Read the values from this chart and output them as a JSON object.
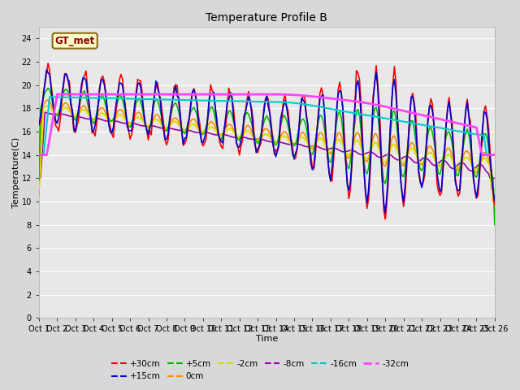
{
  "title": "Temperature Profile B",
  "xlabel": "Time",
  "ylabel": "Temperature(C)",
  "ylim": [
    0,
    25
  ],
  "yticks": [
    0,
    2,
    4,
    6,
    8,
    10,
    12,
    14,
    16,
    18,
    20,
    22,
    24
  ],
  "fig_bg": "#d8d8d8",
  "plot_bg": "#e8e8e8",
  "grid_color": "#ffffff",
  "series_colors": {
    "+30cm": "#ff0000",
    "+15cm": "#0000cc",
    "+5cm": "#00bb00",
    "0cm": "#ff8800",
    "-2cm": "#dddd00",
    "-8cm": "#9900aa",
    "-16cm": "#00cccc",
    "-32cm": "#ff44ff"
  },
  "series_linewidths": {
    "+30cm": 1.2,
    "+15cm": 1.2,
    "+5cm": 1.2,
    "0cm": 1.2,
    "-2cm": 1.5,
    "-8cm": 1.2,
    "-16cm": 1.5,
    "-32cm": 2.0
  },
  "gt_met_label": "GT_met",
  "title_fontsize": 10,
  "axis_label_fontsize": 8,
  "tick_fontsize": 7,
  "legend_fontsize": 7.5
}
